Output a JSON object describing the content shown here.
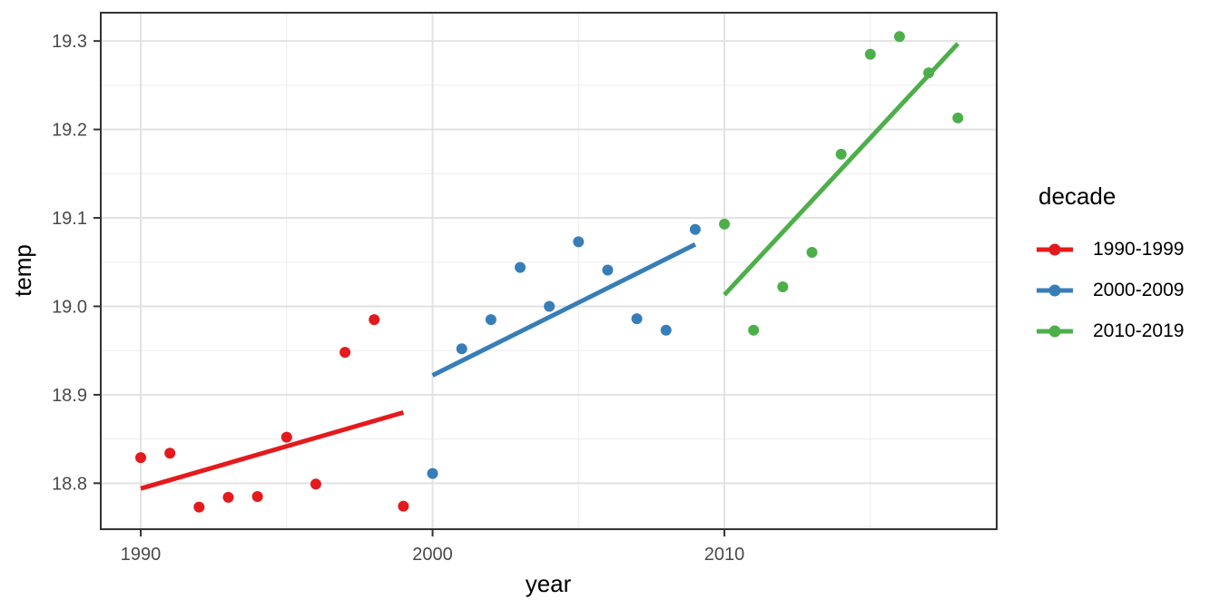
{
  "chart_data": {
    "type": "scatter",
    "title": "",
    "xlabel": "year",
    "ylabel": "temp",
    "legend_title": "decade",
    "legend_position": "right",
    "grid": true,
    "xlim": [
      1988.63,
      2019.33
    ],
    "ylim": [
      18.748,
      19.332
    ],
    "x_ticks": {
      "values": [
        1990,
        2000,
        2010
      ],
      "labels": [
        "1990",
        "2000",
        "2010"
      ]
    },
    "y_ticks": {
      "values": [
        18.8,
        18.9,
        19.0,
        19.1,
        19.2,
        19.3
      ],
      "labels": [
        "18.8",
        "18.9",
        "19.0",
        "19.1",
        "19.2",
        "19.3"
      ]
    },
    "x_minor": [
      1995,
      2005,
      2015
    ],
    "y_minor": [
      18.75,
      18.85,
      18.95,
      19.05,
      19.15,
      19.25
    ],
    "series": [
      {
        "name": "1990-1999",
        "color": "#E41A1C",
        "x": [
          1990,
          1991,
          1992,
          1993,
          1994,
          1995,
          1996,
          1997,
          1998,
          1999
        ],
        "y": [
          18.829,
          18.834,
          18.773,
          18.784,
          18.785,
          18.852,
          18.799,
          18.948,
          18.985,
          18.774
        ],
        "trend": {
          "x": [
            1990,
            1999
          ],
          "y": [
            18.794,
            18.88
          ]
        }
      },
      {
        "name": "2000-2009",
        "color": "#377EB8",
        "x": [
          2000,
          2001,
          2002,
          2003,
          2004,
          2005,
          2006,
          2007,
          2008,
          2009
        ],
        "y": [
          18.811,
          18.952,
          18.985,
          19.044,
          19.0,
          19.073,
          19.041,
          18.986,
          18.973,
          19.087
        ],
        "trend": {
          "x": [
            2000,
            2009
          ],
          "y": [
            18.922,
            19.07
          ]
        }
      },
      {
        "name": "2010-2019",
        "color": "#4DAF4A",
        "x": [
          2010,
          2011,
          2012,
          2013,
          2014,
          2015,
          2016,
          2017,
          2018
        ],
        "y": [
          19.093,
          18.973,
          19.022,
          19.061,
          19.172,
          19.285,
          19.305,
          19.264,
          19.213
        ],
        "trend": {
          "x": [
            2010,
            2018
          ],
          "y": [
            19.013,
            19.297
          ]
        }
      }
    ],
    "style_colors": {
      "panel_border": "#333333",
      "grid_major": "#E2E2E2",
      "grid_minor": "#EDEDED",
      "tick_mark": "#333333",
      "tick_label": "#4A4A4A",
      "axis_title": "#000000"
    }
  }
}
